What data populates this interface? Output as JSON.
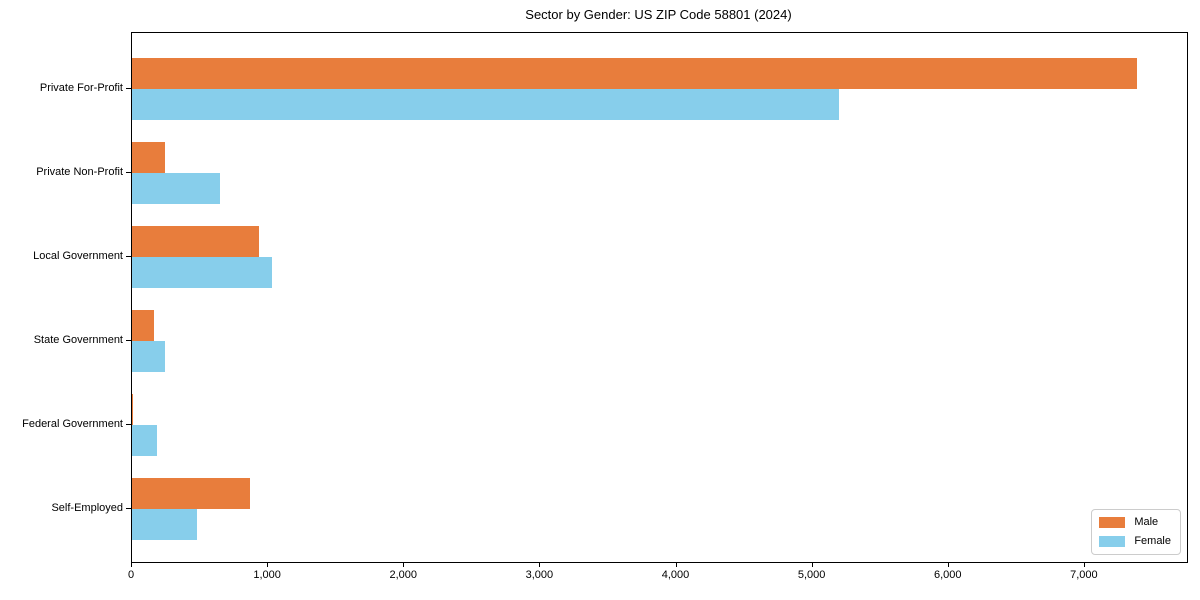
{
  "title": "Sector by Gender: US ZIP Code 58801 (2024)",
  "colors": {
    "male": "#E87D3C",
    "female": "#87CEEB",
    "spine": "#000000",
    "legend_border": "#CCCCCC",
    "background": "#FFFFFF"
  },
  "legend": {
    "position": "lower right",
    "items": [
      {
        "label": "Male",
        "color": "#E87D3C"
      },
      {
        "label": "Female",
        "color": "#87CEEB"
      }
    ]
  },
  "chart_data": {
    "type": "bar",
    "orientation": "horizontal",
    "title": "Sector by Gender: US ZIP Code 58801 (2024)",
    "categories": [
      "Private For-Profit",
      "Private Non-Profit",
      "Local Government",
      "State Government",
      "Federal Government",
      "Self-Employed"
    ],
    "series": [
      {
        "name": "Male",
        "color": "#E87D3C",
        "values": [
          7380,
          240,
          930,
          160,
          10,
          870
        ]
      },
      {
        "name": "Female",
        "color": "#87CEEB",
        "values": [
          5190,
          650,
          1030,
          245,
          180,
          475
        ]
      }
    ],
    "xlabel": "",
    "ylabel": "",
    "xlim": [
      0,
      7750
    ],
    "xticks": [
      0,
      1000,
      2000,
      3000,
      4000,
      5000,
      6000,
      7000
    ],
    "xtick_labels": [
      "0",
      "1,000",
      "2,000",
      "3,000",
      "4,000",
      "5,000",
      "6,000",
      "7,000"
    ],
    "grid": false,
    "legend_position": "lower right"
  }
}
